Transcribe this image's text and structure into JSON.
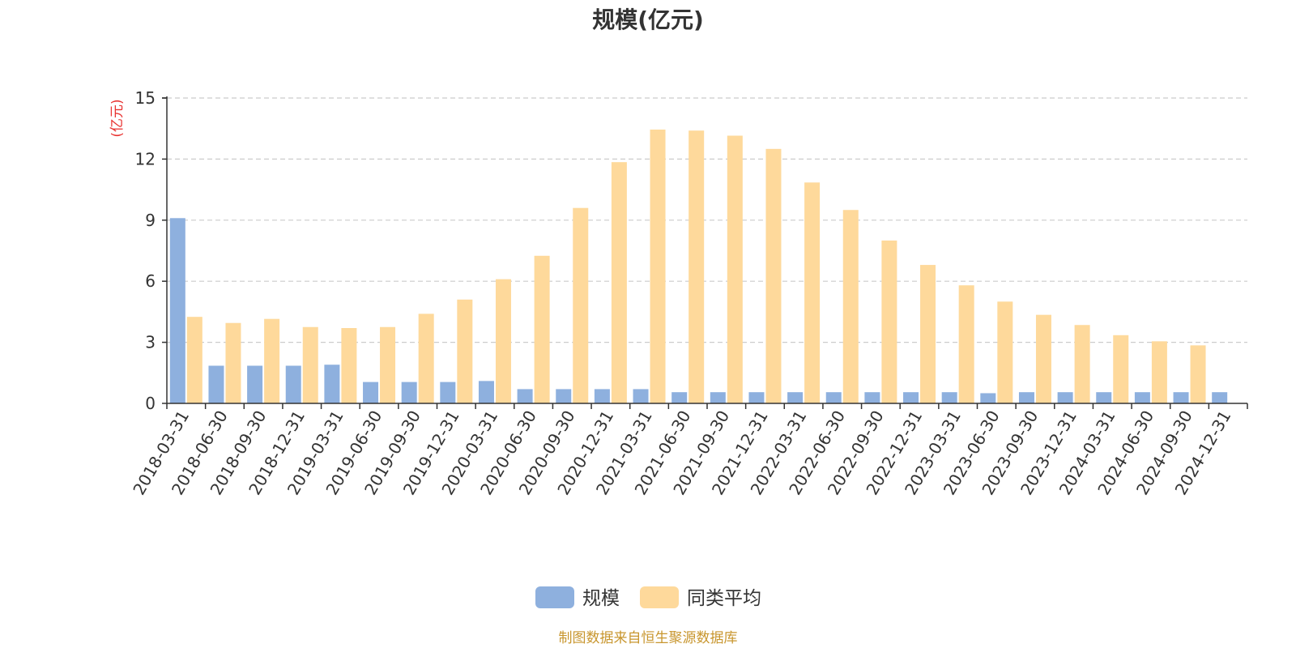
{
  "chart_data": {
    "type": "bar",
    "title": "规模(亿元)",
    "ylabel": "(亿元)",
    "ylim": [
      0,
      15
    ],
    "yticks": [
      "0",
      "3",
      "6",
      "9",
      "12",
      "15"
    ],
    "grid": true,
    "legend_position": "bottom",
    "categories": [
      "2018-03-31",
      "2018-06-30",
      "2018-09-30",
      "2018-12-31",
      "2019-03-31",
      "2019-06-30",
      "2019-09-30",
      "2019-12-31",
      "2020-03-31",
      "2020-06-30",
      "2020-09-30",
      "2020-12-31",
      "2021-03-31",
      "2021-06-30",
      "2021-09-30",
      "2021-12-31",
      "2022-03-31",
      "2022-06-30",
      "2022-09-30",
      "2022-12-31",
      "2023-03-31",
      "2023-06-30",
      "2023-09-30",
      "2023-12-31",
      "2024-03-31",
      "2024-06-30",
      "2024-09-30",
      "2024-12-31"
    ],
    "series": [
      {
        "name": "规模",
        "color": "#8eb0de",
        "values": [
          9.1,
          1.85,
          1.85,
          1.85,
          1.9,
          1.05,
          1.05,
          1.05,
          1.1,
          0.7,
          0.7,
          0.7,
          0.7,
          0.55,
          0.55,
          0.55,
          0.55,
          0.55,
          0.55,
          0.55,
          0.55,
          0.5,
          0.55,
          0.55,
          0.55,
          0.55,
          0.55,
          0.55
        ]
      },
      {
        "name": "同类平均",
        "color": "#fed99b",
        "values": [
          4.25,
          3.95,
          4.15,
          3.75,
          3.7,
          3.75,
          4.4,
          5.1,
          6.1,
          7.25,
          9.6,
          11.85,
          13.45,
          13.4,
          13.15,
          12.5,
          10.85,
          9.5,
          8.0,
          6.8,
          5.8,
          5.0,
          4.35,
          3.85,
          3.35,
          3.05,
          2.85,
          null
        ]
      }
    ]
  },
  "source": "制图数据来自恒生聚源数据库",
  "colors": {
    "ylabel": "#e8312f",
    "source": "#c8962e",
    "axis": "#333333",
    "grid": "#cccccc"
  }
}
